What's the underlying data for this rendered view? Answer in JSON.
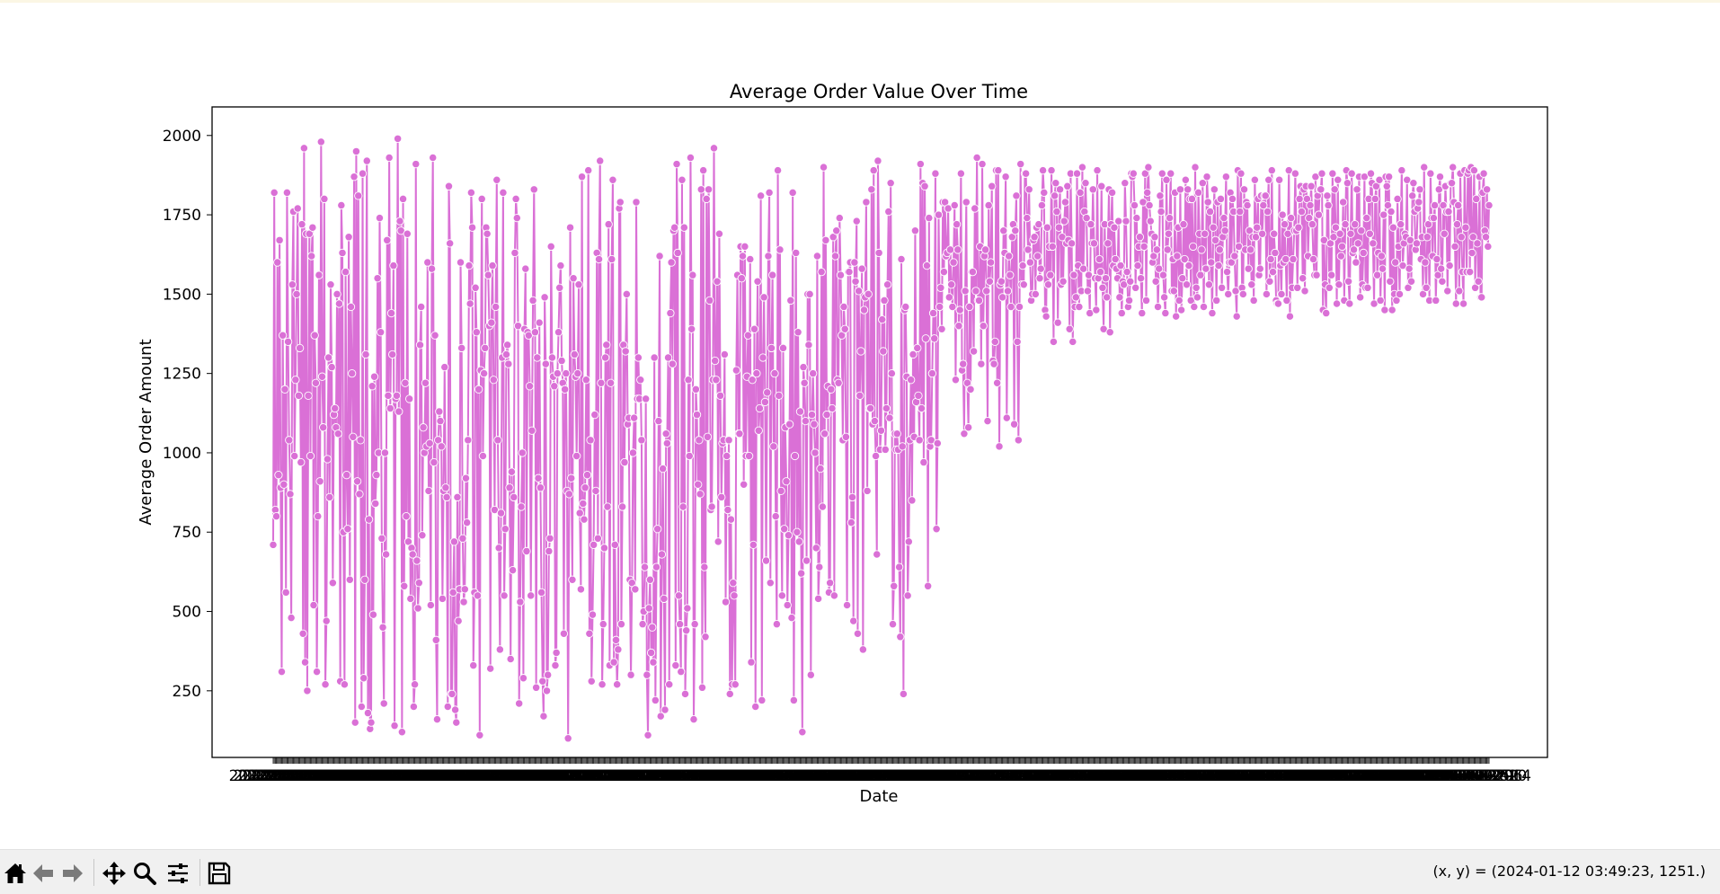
{
  "chart_data": {
    "type": "line",
    "title": "Average Order Value Over Time",
    "xlabel": "Date",
    "ylabel": "Average Order Amount",
    "line_color": "#da70d6",
    "marker_face": "#da70d6",
    "marker_edge": "#ffffff",
    "grid": false,
    "legend": "none",
    "x_start": "2022-01-01",
    "x_end": "2024-12-31",
    "x_frequency": "daily",
    "yticks": [
      250,
      500,
      750,
      1000,
      1250,
      1500,
      1750,
      2000
    ],
    "ylim": [
      40,
      2090
    ],
    "y": [
      710,
      1820,
      820,
      800,
      1600,
      930,
      1670,
      890,
      310,
      1370,
      900,
      1200,
      560,
      1820,
      1350,
      1040,
      870,
      480,
      1530,
      1760,
      990,
      1230,
      1500,
      1770,
      1180,
      1330,
      970,
      1720,
      430,
      1960,
      340,
      1690,
      250,
      1180,
      1690,
      990,
      1620,
      1710,
      520,
      1370,
      1220,
      310,
      800,
      1560,
      910,
      1980,
      1240,
      1080,
      1800,
      270,
      470,
      980,
      1300,
      860,
      1530,
      1270,
      590,
      1120,
      1140,
      1080,
      1500,
      1060,
      1470,
      280,
      1780,
      1630,
      750,
      270,
      1570,
      930,
      760,
      1680,
      600,
      1460,
      1250,
      1050,
      1870,
      150,
      1950,
      910,
      1810,
      870,
      1040,
      200,
      1880,
      290,
      600,
      1310,
      1920,
      180,
      790,
      130,
      150,
      1210,
      490,
      1240,
      840,
      930,
      1550,
      1000,
      1740,
      1380,
      730,
      450,
      210,
      1000,
      680,
      1670,
      1180,
      1930,
      1140,
      1440,
      1310,
      1590,
      140,
      1170,
      1180,
      1990,
      1130,
      1730,
      1700,
      120,
      1800,
      580,
      1220,
      800,
      1690,
      720,
      1170,
      540,
      700,
      680,
      200,
      270,
      1910,
      660,
      510,
      590,
      1340,
      1460,
      740,
      1080,
      1000,
      1220,
      1020,
      1600,
      880,
      1030,
      520,
      1580,
      1930,
      970,
      1370,
      410,
      160,
      1040,
      1130,
      1100,
      1020,
      540,
      880,
      1270,
      890,
      860,
      200,
      1840,
      1660,
      240,
      240,
      560,
      720,
      190,
      150,
      860,
      470,
      570,
      1600,
      1330,
      730,
      530,
      570,
      920,
      780,
      1040,
      1590,
      1470,
      1820,
      1710,
      330,
      560,
      1520,
      1380,
      550,
      1200,
      110,
      1260,
      1800,
      990,
      1250,
      1330,
      1710,
      1690,
      1560,
      1400,
      320,
      1410,
      1590,
      1230,
      820,
      1460,
      1860,
      1040,
      700,
      380,
      810,
      1300,
      1820,
      550,
      760,
      1310,
      1340,
      1280,
      890,
      350,
      940,
      630,
      860,
      1630,
      1800,
      1740,
      1400,
      210,
      530,
      830,
      1000,
      290,
      1390,
      1580,
      690,
      1380,
      1370,
      1210,
      550,
      1070,
      1480,
      1830,
      1380,
      260,
      1300,
      920,
      1410,
      890,
      560,
      280,
      170,
      1490,
      1280,
      250,
      300,
      690,
      730,
      1650,
      1300,
      1240,
      1210,
      330,
      370,
      1250,
      1380,
      1520,
      1590,
      1290,
      1220,
      430,
      1200,
      1250,
      880,
      100,
      870,
      1710,
      920,
      600,
      1550,
      1310,
      1240,
      990,
      1250,
      1530,
      810,
      570,
      1870,
      840,
      790,
      890,
      1230,
      930,
      1890,
      430,
      1040,
      280,
      490,
      710,
      1120,
      880,
      1630,
      730,
      1610,
      1920,
      1220,
      270,
      460,
      700,
      1300,
      1340,
      830,
      1720,
      330,
      1220,
      1610,
      1860,
      340,
      710,
      410,
      270,
      380,
      1770,
      1790,
      460,
      830,
      1340,
      970,
      1320,
      1500,
      1090,
      1110,
      600,
      300,
      590,
      1000,
      1110,
      570,
      1790,
      1170,
      1300,
      1170,
      1230,
      1040,
      460,
      500,
      640,
      1170,
      300,
      110,
      510,
      600,
      370,
      450,
      340,
      1300,
      220,
      640,
      760,
      1100,
      1620,
      170,
      680,
      950,
      540,
      190,
      1060,
      1030,
      1300,
      270,
      1440,
      1600,
      1280,
      1700,
      1710,
      330,
      1910,
      1630,
      550,
      460,
      310,
      1860,
      830,
      1710,
      240,
      440,
      510,
      1230,
      990,
      1930,
      1390,
      1560,
      160,
      460,
      1200,
      1120,
      900,
      1040,
      870,
      1830,
      260,
      1890,
      640,
      420,
      1800,
      1050,
      1830,
      1480,
      820,
      830,
      1230,
      1960,
      1290,
      1230,
      1540,
      720,
      1690,
      1180,
      860,
      1030,
      1040,
      1310,
      530,
      990,
      820,
      1040,
      240,
      790,
      270,
      590,
      550,
      270,
      1260,
      1560,
      1060,
      1060,
      1650,
      1550,
      1620,
      900,
      1650,
      990,
      1240,
      1370,
      990,
      1610,
      340,
      1230,
      710,
      1390,
      200,
      1250,
      1540,
      1070,
      1140,
      1810,
      220,
      1300,
      1490,
      1160,
      660,
      1190,
      1620,
      1820,
      590,
      1330,
      1560,
      1020,
      1250,
      800,
      460,
      1890,
      1180,
      1640,
      880,
      550,
      1330,
      760,
      1080,
      910,
      520,
      740,
      1090,
      1480,
      480,
      1820,
      220,
      990,
      1630,
      750,
      1380,
      720,
      1130,
      620,
      120,
      1270,
      1220,
      1100,
      660,
      1500,
      1340,
      1500,
      300,
      1120,
      1250,
      1090,
      1000,
      700,
      1620,
      540,
      640,
      950,
      1570,
      830,
      1900,
      1060,
      1670,
      1120,
      1210,
      560,
      590,
      1200,
      1140,
      1680,
      550,
      1620,
      1700,
      1230,
      1220,
      1740,
      1560,
      1370,
      1040,
      1460,
      1390,
      1050,
      520,
      1570,
      1570,
      1600,
      780,
      860,
      470,
      1600,
      1540,
      1730,
      430,
      1510,
      1180,
      1320,
      1580,
      380,
      1450,
      1490,
      1790,
      880,
      1500,
      1140,
      1140,
      1830,
      1090,
      1890,
      1100,
      990,
      680,
      1920,
      1630,
      1010,
      1070,
      1420,
      1320,
      1480,
      1010,
      1140,
      1530,
      1760,
      1110,
      1850,
      1250,
      460,
      580,
      1060,
      1010,
      1060,
      1010,
      640,
      420,
      1610,
      1020,
      240,
      1450,
      1460,
      1240,
      550,
      720,
      1040,
      1230,
      850,
      1310,
      1050,
      1700,
      1160,
      1330,
      1180,
      1040,
      1910,
      1140,
      1850,
      970,
      1840,
      1360,
      1590,
      580,
      1740,
      1020,
      1040,
      1250,
      1440,
      1360,
      1880,
      760,
      1030,
      1750,
      1460,
      1520,
      1390,
      1790,
      1570,
      1790,
      1620,
      1630,
      1770,
      1490,
      1640,
      1530,
      1460,
      1600,
      1780,
      1230,
      1720,
      1640,
      1400,
      1450,
      1880,
      1260,
      1280,
      1060,
      1510,
      1790,
      1220,
      1080,
      1460,
      1200,
      1570,
      1570,
      1320,
      1770,
      1510,
      1930,
      1480,
      1480,
      1650,
      1280,
      1910,
      1400,
      1620,
      1640,
      1510,
      1100,
      1780,
      1540,
      1600,
      1840,
      1290,
      1280,
      1350,
      1890,
      1220,
      1890,
      1020,
      1530,
      1540,
      1490,
      1700,
      1630,
      1870,
      1110,
      1510,
      1620,
      1560,
      1460,
      1680,
      1720,
      1090,
      1700,
      1810,
      1350,
      1040,
      1460,
      1910,
      1530,
      1590,
      1530,
      1880,
      1880,
      1740,
      1640,
      1830,
      1600,
      1480,
      1500,
      1670,
      1680,
      1500,
      1710,
      1620,
      1720,
      1550,
      1580,
      1780,
      1890,
      1820,
      1450,
      1430,
      1710,
      1530,
      1650,
      1560,
      1890,
      1650,
      1350,
      1810,
      1850,
      1760,
      1410,
      1710,
      1830,
      1530,
      1680,
      1540,
      1730,
      1790,
      1660,
      1840,
      1670,
      1390,
      1880,
      1660,
      1350,
      1560,
      1460,
      1490,
      1880,
      1590,
      1460,
      1820,
      1510,
      1900,
      1580,
      1760,
      1850,
      1740,
      1510,
      1560,
      1440,
      1720,
      1660,
      1830,
      1660,
      1550,
      1450,
      1890,
      1550,
      1610,
      1570,
      1840,
      1520,
      1390,
      1720,
      1550,
      1490,
      1660,
      1830,
      1380,
      1720,
      1820,
      1590,
      1710,
      1610,
      1580,
      1550,
      1730,
      1490,
      1590,
      1440,
      1540,
      1530,
      1850,
      1730,
      1570,
      1460,
      1480,
      1540,
      1880,
      1870,
      1880,
      1780,
      1520,
      1740,
      1590,
      1650,
      1680,
      1550,
      1440,
      1790,
      1650,
      1880,
      1480,
      1820,
      1900,
      1780,
      1730,
      1690,
      1600,
      1620,
      1680,
      1540,
      1640,
      1460,
      1580,
      1810,
      1760,
      1880,
      1560,
      1490,
      1440,
      1860,
      1640,
      1690,
      1740,
      1880,
      1510,
      1610,
      1510,
      1820,
      1430,
      1620,
      1710,
      1480,
      1830,
      1450,
      1550,
      1720,
      1610,
      1860,
      1530,
      1830,
      1590,
      1800,
      1480,
      1800,
      1650,
      1460,
      1900,
      1520,
      1490,
      1820,
      1690,
      1560,
      1640,
      1850,
      1460,
      1690,
      1580,
      1870,
      1790,
      1530,
      1760,
      1600,
      1440,
      1710,
      1830,
      1670,
      1480,
      1790,
      1590,
      1640,
      1800,
      1520,
      1680,
      1740,
      1700,
      1870,
      1570,
      1500,
      1600,
      1820,
      1600,
      1800,
      1760,
      1620,
      1510,
      1430,
      1890,
      1650,
      1760,
      1880,
      1520,
      1500,
      1830,
      1640,
      1790,
      1780,
      1580,
      1700,
      1640,
      1530,
      1680,
      1480,
      1860,
      1680,
      1710,
      1800,
      1560,
      1580,
      1810,
      1690,
      1780,
      1810,
      1810,
      1500,
      1760,
      1860,
      1540,
      1610,
      1890,
      1570,
      1690,
      1630,
      1480,
      1470,
      1470,
      1860,
      1590,
      1500,
      1750,
      1600,
      1720,
      1610,
      1480,
      1690,
      1890,
      1430,
      1740,
      1520,
      1610,
      1700,
      1880,
      1700,
      1520,
      1710,
      1800,
      1840,
      1760,
      1550,
      1830,
      1510,
      1840,
      1800,
      1620,
      1740,
      1780,
      1840,
      1720,
      1610,
      1560,
      1870,
      1560,
      1810,
      1750,
      1830,
      1830,
      1880,
      1450,
      1670,
      1530,
      1440,
      1810,
      1780,
      1520,
      1660,
      1560,
      1880,
      1680,
      1830,
      1710,
      1470,
      1860,
      1530,
      1690,
      1620,
      1650,
      1790,
      1480,
      1720,
      1890,
      1850,
      1540,
      1470,
      1690,
      1880,
      1630,
      1640,
      1720,
      1600,
      1830,
      1660,
      1870,
      1490,
      1700,
      1530,
      1630,
      1870,
      1520,
      1740,
      1520,
      1800,
      1690,
      1880,
      1850,
      1660,
      1470,
      1800,
      1840,
      1560,
      1630,
      1860,
      1480,
      1620,
      1580,
      1750,
      1450,
      1870,
      1840,
      1780,
      1870,
      1540,
      1760,
      1450,
      1710,
      1500,
      1600,
      1480,
      1800,
      1650,
      1500,
      1720,
      1890,
      1590,
      1660,
      1690,
      1680,
      1860,
      1520,
      1580,
      1670,
      1540,
      1810,
      1850,
      1760,
      1640,
      1660,
      1770,
      1790,
      1830,
      1610,
      1680,
      1500,
      1900,
      1600,
      1520,
      1680,
      1720,
      1480,
      1880,
      1740,
      1620,
      1740,
      1780,
      1480,
      1610,
      1560,
      1830,
      1870,
      1580,
      1540,
      1780,
      1690,
      1840,
      1760,
      1510,
      1760,
      1590,
      1850,
      1850,
      1900,
      1790,
      1650,
      1470,
      1720,
      1780,
      1510,
      1880,
      1680,
      1570,
      1470,
      1890,
      1710,
      1570,
      1880,
      1890,
      1570,
      1900,
      1630,
      1680,
      1890,
      1520,
      1800,
      1660,
      1540,
      1870,
      1490,
      1490,
      1820,
      1880,
      1700,
      1680,
      1830,
      1650,
      1780
    ]
  },
  "toolbar": {
    "buttons": [
      "home-icon",
      "back-icon",
      "forward-icon",
      "pan-icon",
      "zoom-icon",
      "configure-icon",
      "save-icon"
    ],
    "coord_readout": "(x, y) = (2024-01-12 03:49:23, 1251.)"
  }
}
